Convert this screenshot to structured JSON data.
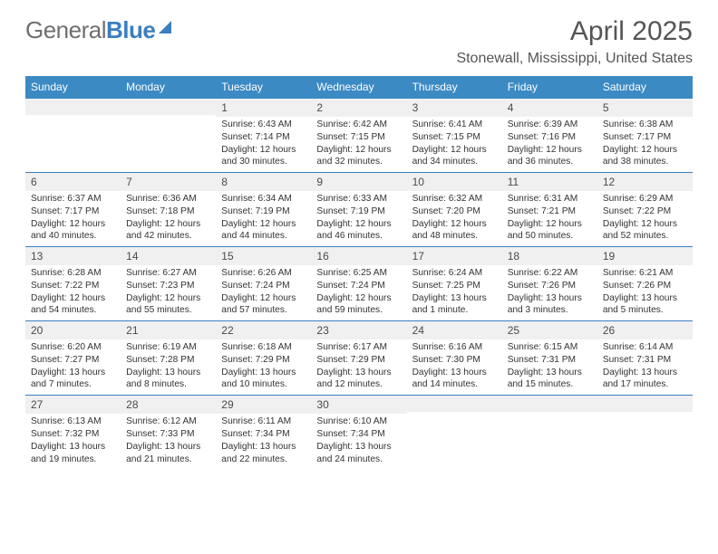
{
  "brand": {
    "part1": "General",
    "part2": "Blue"
  },
  "title": "April 2025",
  "location": "Stonewall, Mississippi, United States",
  "colors": {
    "header_bar": "#3b8ac4",
    "week_divider": "#3b7fbf",
    "daynum_bg": "#f0f0f0",
    "text": "#333333",
    "title_text": "#555555",
    "logo_gray": "#6f6f6f"
  },
  "dow": [
    "Sunday",
    "Monday",
    "Tuesday",
    "Wednesday",
    "Thursday",
    "Friday",
    "Saturday"
  ],
  "weeks": [
    [
      null,
      null,
      {
        "n": "1",
        "sr": "Sunrise: 6:43 AM",
        "ss": "Sunset: 7:14 PM",
        "dl": "Daylight: 12 hours and 30 minutes."
      },
      {
        "n": "2",
        "sr": "Sunrise: 6:42 AM",
        "ss": "Sunset: 7:15 PM",
        "dl": "Daylight: 12 hours and 32 minutes."
      },
      {
        "n": "3",
        "sr": "Sunrise: 6:41 AM",
        "ss": "Sunset: 7:15 PM",
        "dl": "Daylight: 12 hours and 34 minutes."
      },
      {
        "n": "4",
        "sr": "Sunrise: 6:39 AM",
        "ss": "Sunset: 7:16 PM",
        "dl": "Daylight: 12 hours and 36 minutes."
      },
      {
        "n": "5",
        "sr": "Sunrise: 6:38 AM",
        "ss": "Sunset: 7:17 PM",
        "dl": "Daylight: 12 hours and 38 minutes."
      }
    ],
    [
      {
        "n": "6",
        "sr": "Sunrise: 6:37 AM",
        "ss": "Sunset: 7:17 PM",
        "dl": "Daylight: 12 hours and 40 minutes."
      },
      {
        "n": "7",
        "sr": "Sunrise: 6:36 AM",
        "ss": "Sunset: 7:18 PM",
        "dl": "Daylight: 12 hours and 42 minutes."
      },
      {
        "n": "8",
        "sr": "Sunrise: 6:34 AM",
        "ss": "Sunset: 7:19 PM",
        "dl": "Daylight: 12 hours and 44 minutes."
      },
      {
        "n": "9",
        "sr": "Sunrise: 6:33 AM",
        "ss": "Sunset: 7:19 PM",
        "dl": "Daylight: 12 hours and 46 minutes."
      },
      {
        "n": "10",
        "sr": "Sunrise: 6:32 AM",
        "ss": "Sunset: 7:20 PM",
        "dl": "Daylight: 12 hours and 48 minutes."
      },
      {
        "n": "11",
        "sr": "Sunrise: 6:31 AM",
        "ss": "Sunset: 7:21 PM",
        "dl": "Daylight: 12 hours and 50 minutes."
      },
      {
        "n": "12",
        "sr": "Sunrise: 6:29 AM",
        "ss": "Sunset: 7:22 PM",
        "dl": "Daylight: 12 hours and 52 minutes."
      }
    ],
    [
      {
        "n": "13",
        "sr": "Sunrise: 6:28 AM",
        "ss": "Sunset: 7:22 PM",
        "dl": "Daylight: 12 hours and 54 minutes."
      },
      {
        "n": "14",
        "sr": "Sunrise: 6:27 AM",
        "ss": "Sunset: 7:23 PM",
        "dl": "Daylight: 12 hours and 55 minutes."
      },
      {
        "n": "15",
        "sr": "Sunrise: 6:26 AM",
        "ss": "Sunset: 7:24 PM",
        "dl": "Daylight: 12 hours and 57 minutes."
      },
      {
        "n": "16",
        "sr": "Sunrise: 6:25 AM",
        "ss": "Sunset: 7:24 PM",
        "dl": "Daylight: 12 hours and 59 minutes."
      },
      {
        "n": "17",
        "sr": "Sunrise: 6:24 AM",
        "ss": "Sunset: 7:25 PM",
        "dl": "Daylight: 13 hours and 1 minute."
      },
      {
        "n": "18",
        "sr": "Sunrise: 6:22 AM",
        "ss": "Sunset: 7:26 PM",
        "dl": "Daylight: 13 hours and 3 minutes."
      },
      {
        "n": "19",
        "sr": "Sunrise: 6:21 AM",
        "ss": "Sunset: 7:26 PM",
        "dl": "Daylight: 13 hours and 5 minutes."
      }
    ],
    [
      {
        "n": "20",
        "sr": "Sunrise: 6:20 AM",
        "ss": "Sunset: 7:27 PM",
        "dl": "Daylight: 13 hours and 7 minutes."
      },
      {
        "n": "21",
        "sr": "Sunrise: 6:19 AM",
        "ss": "Sunset: 7:28 PM",
        "dl": "Daylight: 13 hours and 8 minutes."
      },
      {
        "n": "22",
        "sr": "Sunrise: 6:18 AM",
        "ss": "Sunset: 7:29 PM",
        "dl": "Daylight: 13 hours and 10 minutes."
      },
      {
        "n": "23",
        "sr": "Sunrise: 6:17 AM",
        "ss": "Sunset: 7:29 PM",
        "dl": "Daylight: 13 hours and 12 minutes."
      },
      {
        "n": "24",
        "sr": "Sunrise: 6:16 AM",
        "ss": "Sunset: 7:30 PM",
        "dl": "Daylight: 13 hours and 14 minutes."
      },
      {
        "n": "25",
        "sr": "Sunrise: 6:15 AM",
        "ss": "Sunset: 7:31 PM",
        "dl": "Daylight: 13 hours and 15 minutes."
      },
      {
        "n": "26",
        "sr": "Sunrise: 6:14 AM",
        "ss": "Sunset: 7:31 PM",
        "dl": "Daylight: 13 hours and 17 minutes."
      }
    ],
    [
      {
        "n": "27",
        "sr": "Sunrise: 6:13 AM",
        "ss": "Sunset: 7:32 PM",
        "dl": "Daylight: 13 hours and 19 minutes."
      },
      {
        "n": "28",
        "sr": "Sunrise: 6:12 AM",
        "ss": "Sunset: 7:33 PM",
        "dl": "Daylight: 13 hours and 21 minutes."
      },
      {
        "n": "29",
        "sr": "Sunrise: 6:11 AM",
        "ss": "Sunset: 7:34 PM",
        "dl": "Daylight: 13 hours and 22 minutes."
      },
      {
        "n": "30",
        "sr": "Sunrise: 6:10 AM",
        "ss": "Sunset: 7:34 PM",
        "dl": "Daylight: 13 hours and 24 minutes."
      },
      null,
      null,
      null
    ]
  ]
}
